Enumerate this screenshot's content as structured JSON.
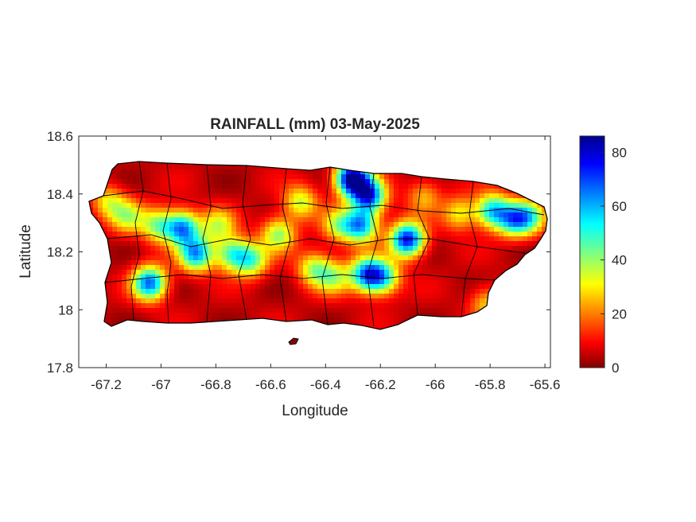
{
  "figure": {
    "title": "RAINFALL (mm) 03-May-2025",
    "xlabel": "Longitude",
    "ylabel": "Latitude"
  },
  "axes": {
    "xlim": [
      -67.3,
      -65.58
    ],
    "ylim": [
      17.8,
      18.6
    ],
    "xticks": [
      -67.2,
      -67,
      -66.8,
      -66.6,
      -66.4,
      -66.2,
      -66,
      -65.8,
      -65.6
    ],
    "xtick_labels": [
      "-67.2",
      "-67",
      "-66.8",
      "-66.6",
      "-66.4",
      "-66.2",
      "-66",
      "-65.8",
      "-65.6"
    ],
    "yticks": [
      17.8,
      18,
      18.2,
      18.4,
      18.6
    ],
    "ytick_labels": [
      "17.8",
      "18",
      "18.2",
      "18.4",
      "18.6"
    ],
    "box": true
  },
  "colorbar": {
    "colormap": "jet",
    "range": [
      0,
      86
    ],
    "ticks": [
      0,
      20,
      40,
      60,
      80
    ],
    "tick_labels": [
      "0",
      "20",
      "40",
      "60",
      "80"
    ],
    "location": "right"
  },
  "chart_data": {
    "type": "heatmap",
    "title": "RAINFALL (mm) 03-May-2025",
    "xlabel": "Longitude",
    "ylabel": "Latitude",
    "xlim": [
      -67.3,
      -65.58
    ],
    "ylim": [
      17.8,
      18.6
    ],
    "units": "mm",
    "colorbar_range": [
      0,
      86
    ],
    "base_value": 5,
    "rain_cells": [
      {
        "lon": -66.31,
        "lat": 18.46,
        "value": 86
      },
      {
        "lon": -66.25,
        "lat": 18.4,
        "value": 62
      },
      {
        "lon": -66.28,
        "lat": 18.3,
        "value": 55
      },
      {
        "lon": -66.11,
        "lat": 18.25,
        "value": 72
      },
      {
        "lon": -66.2,
        "lat": 18.12,
        "value": 45
      },
      {
        "lon": -66.26,
        "lat": 18.13,
        "value": 55
      },
      {
        "lon": -66.5,
        "lat": 18.38,
        "value": 30
      },
      {
        "lon": -66.58,
        "lat": 18.27,
        "value": 35
      },
      {
        "lon": -66.45,
        "lat": 18.15,
        "value": 32
      },
      {
        "lon": -66.38,
        "lat": 18.12,
        "value": 28
      },
      {
        "lon": -66.75,
        "lat": 18.2,
        "value": 40
      },
      {
        "lon": -66.68,
        "lat": 18.18,
        "value": 38
      },
      {
        "lon": -66.88,
        "lat": 18.2,
        "value": 55
      },
      {
        "lon": -66.93,
        "lat": 18.29,
        "value": 58
      },
      {
        "lon": -67.02,
        "lat": 18.3,
        "value": 35
      },
      {
        "lon": -67.13,
        "lat": 18.33,
        "value": 28
      },
      {
        "lon": -67.2,
        "lat": 18.38,
        "value": 25
      },
      {
        "lon": -67.05,
        "lat": 18.1,
        "value": 62
      },
      {
        "lon": -66.8,
        "lat": 18.3,
        "value": 28
      },
      {
        "lon": -65.8,
        "lat": 18.35,
        "value": 50
      },
      {
        "lon": -65.72,
        "lat": 18.32,
        "value": 48
      },
      {
        "lon": -65.66,
        "lat": 18.33,
        "value": 32
      },
      {
        "lon": -65.92,
        "lat": 18.34,
        "value": 26
      },
      {
        "lon": -65.82,
        "lat": 18.03,
        "value": 22
      },
      {
        "lon": -66.05,
        "lat": 18.4,
        "value": 20
      },
      {
        "lon": -66.36,
        "lat": 18.3,
        "value": 28
      }
    ]
  }
}
